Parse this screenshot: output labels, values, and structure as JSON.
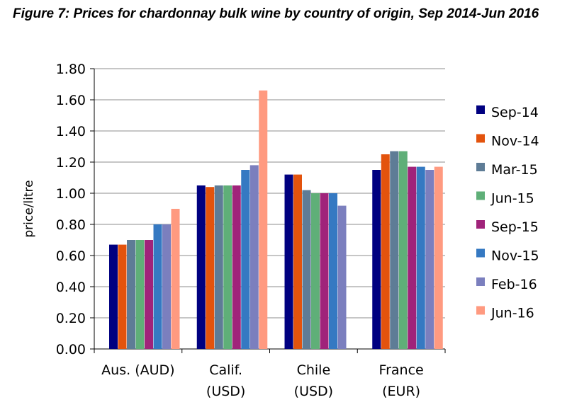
{
  "title": "Figure 7: Prices for chardonnay bulk wine by country of origin, Sep 2014-Jun 2016",
  "chart_data": {
    "type": "bar",
    "title": "Figure 7: Prices for chardonnay bulk wine by country of origin, Sep 2014-Jun 2016",
    "ylabel": "price/litre",
    "xlabel": "",
    "ylim": [
      0,
      1.8
    ],
    "yticks": [
      "0.00",
      "0.20",
      "0.40",
      "0.60",
      "0.80",
      "1.00",
      "1.20",
      "1.40",
      "1.60",
      "1.80"
    ],
    "grid": true,
    "legend_position": "right",
    "categories": [
      [
        "Aus. (AUD)"
      ],
      [
        "Calif.",
        "(USD)"
      ],
      [
        "Chile",
        "(USD)"
      ],
      [
        "France",
        "(EUR)"
      ]
    ],
    "series": [
      {
        "name": "Sep-14",
        "color": "#000080",
        "values": [
          0.67,
          1.05,
          1.12,
          1.15
        ]
      },
      {
        "name": "Nov-14",
        "color": "#E3530D",
        "values": [
          0.67,
          1.04,
          1.12,
          1.25
        ]
      },
      {
        "name": "Mar-15",
        "color": "#5E7C96",
        "values": [
          0.7,
          1.05,
          1.02,
          1.27
        ]
      },
      {
        "name": "Jun-15",
        "color": "#5FAF78",
        "values": [
          0.7,
          1.05,
          1.0,
          1.27
        ]
      },
      {
        "name": "Sep-15",
        "color": "#A0237A",
        "values": [
          0.7,
          1.05,
          1.0,
          1.17
        ]
      },
      {
        "name": "Nov-15",
        "color": "#3579C2",
        "values": [
          0.8,
          1.15,
          1.0,
          1.17
        ]
      },
      {
        "name": "Feb-16",
        "color": "#7B7FBE",
        "values": [
          0.8,
          1.18,
          0.92,
          1.15
        ]
      },
      {
        "name": "Jun-16",
        "color": "#FF9A80",
        "values": [
          0.9,
          1.66,
          null,
          1.17
        ]
      }
    ]
  }
}
